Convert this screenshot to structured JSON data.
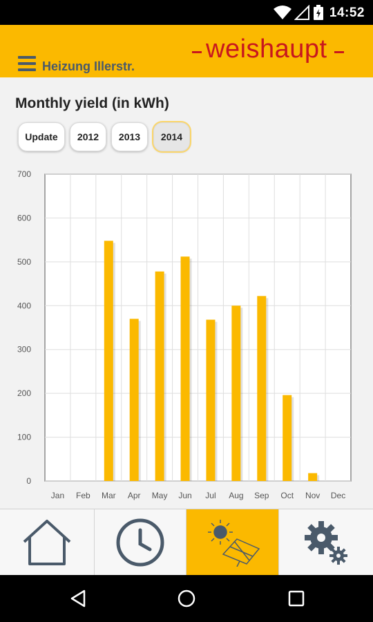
{
  "status_bar": {
    "time": "14:52",
    "icons": [
      "wifi-icon",
      "no-signal-icon",
      "battery-charging-icon"
    ]
  },
  "header": {
    "title": "Heizung Illerstr.",
    "brand": "weishaupt",
    "accent": "#fbb900",
    "brand_color": "#c8171e"
  },
  "main": {
    "title": "Monthly yield (in kWh)",
    "buttons": [
      {
        "label": "Update"
      },
      {
        "label": "2012"
      },
      {
        "label": "2013"
      },
      {
        "label": "2014",
        "active": true
      }
    ]
  },
  "chart_data": {
    "type": "bar",
    "categories": [
      "Jan",
      "Feb",
      "Mar",
      "Apr",
      "May",
      "Jun",
      "Jul",
      "Aug",
      "Sep",
      "Oct",
      "Nov",
      "Dec"
    ],
    "values": [
      0,
      0,
      548,
      370,
      478,
      512,
      368,
      400,
      422,
      196,
      18,
      0
    ],
    "ylim": [
      0,
      700
    ],
    "yticks": [
      0,
      100,
      200,
      300,
      400,
      500,
      600,
      700
    ],
    "grid": true,
    "bar_color": "#fbb900"
  },
  "bottom_nav": {
    "tabs": [
      {
        "icon": "home-icon"
      },
      {
        "icon": "clock-icon"
      },
      {
        "icon": "solar-panel-icon",
        "active": true
      },
      {
        "icon": "settings-gears-icon"
      }
    ]
  },
  "system_nav": {
    "icons": [
      "back-icon",
      "home-circle-icon",
      "recents-icon"
    ]
  }
}
